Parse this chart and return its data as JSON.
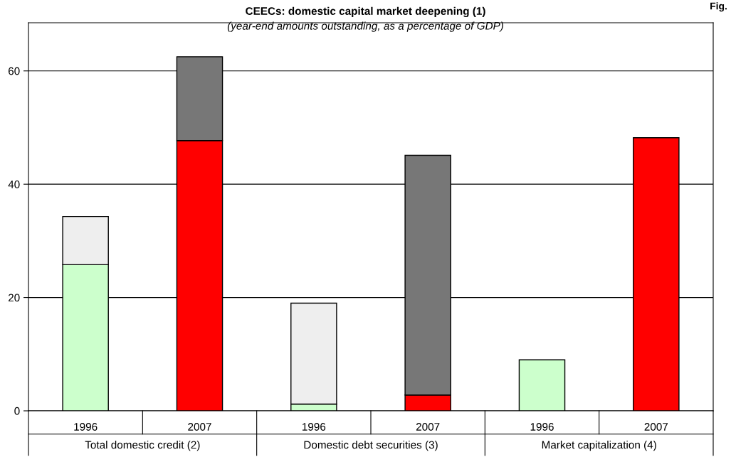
{
  "chart_data": {
    "type": "bar",
    "title": "CEECs: domestic capital market deepening (1)",
    "subtitle": "(year-end amounts outstanding, as a percentage of GDP)",
    "categories": [
      "1996",
      "2007",
      "1996",
      "2007",
      "1996",
      "2007"
    ],
    "stacked": true,
    "series": [
      {
        "colors": [
          "#ccffcc",
          "#ff0000",
          "#ccffcc",
          "#ff0000",
          "#ccffcc",
          "#ff0000"
        ],
        "values": [
          25.8,
          47.7,
          1.2,
          2.8,
          9.0,
          48.2
        ]
      },
      {
        "colors": [
          "#eeeeee",
          "#777777",
          "#eeeeee",
          "#777777",
          "#eeeeee",
          "#777777"
        ],
        "values": [
          8.5,
          14.8,
          17.8,
          42.3,
          null,
          null
        ]
      }
    ],
    "annotations": [
      "Total domestic credit (2)",
      "Domestic debt securities (3)",
      "Market capitalization (4)",
      "Fig."
    ],
    "ylim": [
      0,
      68.5
    ],
    "yticks": [
      0,
      20,
      40,
      60
    ],
    "grid": "y",
    "legend": false
  }
}
